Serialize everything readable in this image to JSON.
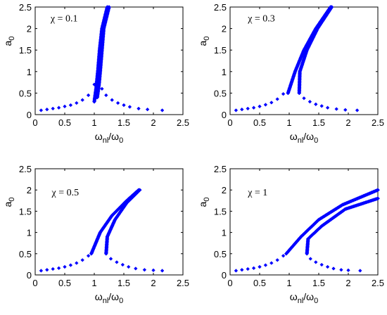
{
  "chart_data": [
    {
      "type": "scatter",
      "panel": "top-left",
      "annotation": "χ = 0.1",
      "xlabel": {
        "base": "ω",
        "sub1": "nl",
        "mid": "/ω",
        "sub2": "0"
      },
      "ylabel": {
        "base": "a",
        "sub": "0"
      },
      "xlim": [
        0,
        2.5
      ],
      "ylim": [
        0,
        2.5
      ],
      "xticks": [
        "0",
        "0.5",
        "1",
        "1.5",
        "2",
        "2.5"
      ],
      "yticks": [
        "0",
        "0.5",
        "1",
        "1.5",
        "2",
        "2.5"
      ],
      "marker_color": "#0000ff",
      "upper_branch": [
        [
          1.0,
          0.3
        ],
        [
          1.03,
          0.6
        ],
        [
          1.06,
          1.0
        ],
        [
          1.09,
          1.5
        ],
        [
          1.13,
          2.0
        ],
        [
          1.22,
          2.5
        ]
      ],
      "lower_branch": [
        [
          1.05,
          0.4
        ],
        [
          1.08,
          0.7
        ],
        [
          1.1,
          1.0
        ],
        [
          1.13,
          1.5
        ],
        [
          1.16,
          2.0
        ],
        [
          1.25,
          2.5
        ]
      ],
      "tails": [
        [
          [
            0.1,
            0.1
          ],
          [
            0.2,
            0.12
          ],
          [
            0.3,
            0.14
          ],
          [
            0.4,
            0.16
          ],
          [
            0.5,
            0.19
          ],
          [
            0.6,
            0.22
          ],
          [
            0.7,
            0.27
          ],
          [
            0.8,
            0.34
          ],
          [
            0.9,
            0.45
          ],
          [
            1.0,
            0.7
          ]
        ],
        [
          [
            1.13,
            0.6
          ],
          [
            1.2,
            0.45
          ],
          [
            1.3,
            0.34
          ],
          [
            1.4,
            0.27
          ],
          [
            1.5,
            0.22
          ],
          [
            1.6,
            0.18
          ],
          [
            1.75,
            0.14
          ],
          [
            1.9,
            0.12
          ],
          [
            2.15,
            0.1
          ]
        ]
      ]
    },
    {
      "type": "scatter",
      "panel": "top-right",
      "annotation": "χ = 0.3",
      "xlabel": {
        "base": "ω",
        "sub1": "nl",
        "mid": "/ω",
        "sub2": "0"
      },
      "ylabel": {
        "base": "a",
        "sub": "0"
      },
      "xlim": [
        0,
        2.5
      ],
      "ylim": [
        0,
        2.5
      ],
      "xticks": [
        "0",
        "0.5",
        "1",
        "1.5",
        "2",
        "2.5"
      ],
      "yticks": [
        "0",
        "0.5",
        "1",
        "1.5",
        "2",
        "2.5"
      ],
      "marker_color": "#0000ff",
      "upper_branch": [
        [
          0.98,
          0.5
        ],
        [
          1.1,
          1.0
        ],
        [
          1.25,
          1.5
        ],
        [
          1.45,
          2.0
        ],
        [
          1.7,
          2.5
        ]
      ],
      "lower_branch": [
        [
          1.17,
          0.5
        ],
        [
          1.18,
          1.0
        ],
        [
          1.3,
          1.5
        ],
        [
          1.48,
          2.0
        ],
        [
          1.72,
          2.5
        ]
      ],
      "tails": [
        [
          [
            0.1,
            0.1
          ],
          [
            0.2,
            0.12
          ],
          [
            0.3,
            0.14
          ],
          [
            0.4,
            0.16
          ],
          [
            0.5,
            0.19
          ],
          [
            0.6,
            0.23
          ],
          [
            0.7,
            0.28
          ],
          [
            0.8,
            0.36
          ],
          [
            0.9,
            0.48
          ],
          [
            0.98,
            0.5
          ]
        ],
        [
          [
            1.17,
            0.5
          ],
          [
            1.25,
            0.38
          ],
          [
            1.35,
            0.3
          ],
          [
            1.45,
            0.24
          ],
          [
            1.55,
            0.2
          ],
          [
            1.65,
            0.16
          ],
          [
            1.8,
            0.13
          ],
          [
            1.95,
            0.11
          ],
          [
            2.15,
            0.1
          ]
        ]
      ]
    },
    {
      "type": "scatter",
      "panel": "bottom-left",
      "annotation": "χ = 0.5",
      "xlabel": {
        "base": "ω",
        "sub1": "nl",
        "mid": "/ω",
        "sub2": "0"
      },
      "ylabel": {
        "base": "a",
        "sub": "0"
      },
      "xlim": [
        0,
        2.5
      ],
      "ylim": [
        0,
        2.5
      ],
      "xticks": [
        "0",
        "0.5",
        "1",
        "1.5",
        "2",
        "2.5"
      ],
      "yticks": [
        "0",
        "0.5",
        "1",
        "1.5",
        "2",
        "2.5"
      ],
      "marker_color": "#0000ff",
      "upper_branch": [
        [
          0.95,
          0.5
        ],
        [
          1.1,
          1.0
        ],
        [
          1.3,
          1.4
        ],
        [
          1.55,
          1.75
        ],
        [
          1.75,
          2.0
        ]
      ],
      "lower_branch": [
        [
          1.2,
          0.5
        ],
        [
          1.22,
          0.9
        ],
        [
          1.35,
          1.3
        ],
        [
          1.55,
          1.7
        ],
        [
          1.77,
          2.0
        ]
      ],
      "tails": [
        [
          [
            0.1,
            0.1
          ],
          [
            0.2,
            0.12
          ],
          [
            0.3,
            0.14
          ],
          [
            0.4,
            0.16
          ],
          [
            0.5,
            0.19
          ],
          [
            0.6,
            0.23
          ],
          [
            0.7,
            0.28
          ],
          [
            0.8,
            0.35
          ],
          [
            0.9,
            0.45
          ],
          [
            0.95,
            0.5
          ]
        ],
        [
          [
            1.2,
            0.5
          ],
          [
            1.28,
            0.38
          ],
          [
            1.38,
            0.3
          ],
          [
            1.48,
            0.24
          ],
          [
            1.58,
            0.19
          ],
          [
            1.7,
            0.15
          ],
          [
            1.85,
            0.12
          ],
          [
            2.0,
            0.11
          ],
          [
            2.15,
            0.1
          ]
        ]
      ]
    },
    {
      "type": "scatter",
      "panel": "bottom-right",
      "annotation": "χ = 1",
      "xlabel": {
        "base": "ω",
        "sub1": "nl",
        "mid": "/ω",
        "sub2": "0"
      },
      "ylabel": {
        "base": "a",
        "sub": "0"
      },
      "xlim": [
        0,
        2.5
      ],
      "ylim": [
        0,
        2.5
      ],
      "xticks": [
        "0",
        "0.5",
        "1",
        "1.5",
        "2",
        "2.5"
      ],
      "yticks": [
        "0",
        "0.5",
        "1",
        "1.5",
        "2",
        "2.5"
      ],
      "marker_color": "#0000ff",
      "upper_branch": [
        [
          0.95,
          0.5
        ],
        [
          1.2,
          0.9
        ],
        [
          1.5,
          1.3
        ],
        [
          1.9,
          1.65
        ],
        [
          2.5,
          2.0
        ]
      ],
      "lower_branch": [
        [
          1.3,
          0.5
        ],
        [
          1.32,
          0.85
        ],
        [
          1.55,
          1.15
        ],
        [
          1.95,
          1.55
        ],
        [
          2.5,
          1.8
        ]
      ],
      "tails": [
        [
          [
            0.1,
            0.1
          ],
          [
            0.2,
            0.12
          ],
          [
            0.3,
            0.14
          ],
          [
            0.4,
            0.16
          ],
          [
            0.5,
            0.19
          ],
          [
            0.6,
            0.23
          ],
          [
            0.7,
            0.28
          ],
          [
            0.8,
            0.35
          ],
          [
            0.9,
            0.45
          ],
          [
            0.95,
            0.5
          ]
        ],
        [
          [
            1.3,
            0.5
          ],
          [
            1.36,
            0.38
          ],
          [
            1.45,
            0.3
          ],
          [
            1.55,
            0.24
          ],
          [
            1.65,
            0.19
          ],
          [
            1.75,
            0.15
          ],
          [
            1.88,
            0.12
          ],
          [
            2.0,
            0.11
          ],
          [
            2.2,
            0.1
          ]
        ]
      ]
    }
  ]
}
